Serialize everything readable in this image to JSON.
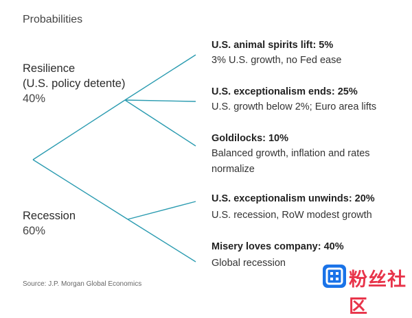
{
  "heading": "Probabilities",
  "branches": [
    {
      "name_line1": "Resilience",
      "name_line2": "(U.S. policy detente)",
      "probability": "40%"
    },
    {
      "name_line1": "Recession",
      "probability": "60%"
    }
  ],
  "scenarios": [
    {
      "title": "U.S. animal spirits lift: 5%",
      "description": [
        "3% U.S. growth, no Fed ease"
      ]
    },
    {
      "title": "U.S. exceptionalism ends: 25%",
      "description": [
        "U.S. growth below 2%; Euro area lifts"
      ]
    },
    {
      "title": "Goldilocks: 10%",
      "description": [
        "Balanced growth, inflation and rates",
        "normalize"
      ]
    },
    {
      "title": "U.S. exceptionalism unwinds: 20%",
      "description": [
        "U.S. recession, RoW modest growth"
      ]
    },
    {
      "title": "Misery loves company: 40%",
      "description": [
        "Global recession"
      ]
    }
  ],
  "source": "Source: J.P. Morgan Global Economics",
  "watermark": {
    "text": "粉丝社区"
  },
  "colors": {
    "line": "#2a9bb0",
    "watermark_text": "#e8344a",
    "watermark_icon": "#1a73e8"
  }
}
